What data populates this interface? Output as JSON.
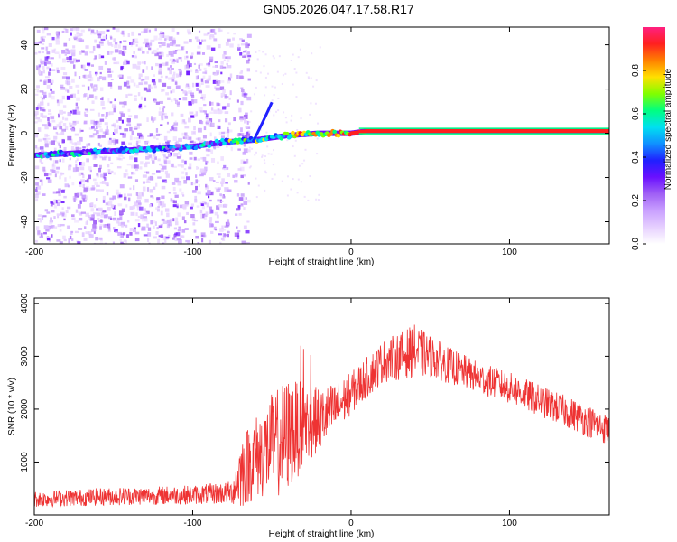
{
  "title": "GN05.2026.047.17.58.R17",
  "colors": {
    "line": "#ee3333",
    "colormap": [
      "#ffffff",
      "#e6d0ff",
      "#c9a0ff",
      "#a060f5",
      "#6a10ff",
      "#2020ff",
      "#1090ff",
      "#00e0f0",
      "#00ff80",
      "#80ff00",
      "#ffe000",
      "#ff8000",
      "#ff2020",
      "#ff2080"
    ]
  },
  "chart_data": [
    {
      "type": "heatmap",
      "xlabel": "Height of straight line (km)",
      "ylabel": "Frequency (Hz)",
      "xlim": [
        -200,
        163
      ],
      "ylim": [
        -50,
        48
      ],
      "xticks": [
        -200,
        -100,
        0,
        100
      ],
      "yticks": [
        -40,
        -20,
        0,
        20,
        40
      ],
      "colorbar": {
        "label": "Normalized spectral amplitude",
        "range": [
          0,
          1
        ],
        "ticks": [
          "0.0",
          "0.2",
          "0.4",
          "0.6",
          "0.8"
        ]
      },
      "ridge": {
        "description_points_x": [
          -200,
          -150,
          -100,
          -80,
          -60,
          -40,
          -20,
          0,
          10,
          163
        ],
        "description_points_freq": [
          -10,
          -8,
          -6,
          -4,
          -3,
          -1,
          0,
          0,
          1,
          1
        ]
      }
    },
    {
      "type": "line",
      "xlabel": "Height of straight line (km)",
      "ylabel": "SNR (10 * v/v)",
      "xlim": [
        -200,
        163
      ],
      "ylim": [
        0,
        4100
      ],
      "xticks": [
        -200,
        -100,
        0,
        100
      ],
      "yticks": [
        1000,
        2000,
        3000,
        4000
      ],
      "grid": false,
      "series": [
        {
          "x": [
            -200,
            -150,
            -100,
            -75,
            -70,
            -60,
            -50,
            -40,
            -30,
            -20,
            -10,
            0,
            10,
            20,
            30,
            40,
            50,
            60,
            80,
            100,
            120,
            140,
            163
          ],
          "mean": [
            300,
            350,
            380,
            420,
            800,
            1100,
            1300,
            1500,
            1700,
            1800,
            2000,
            2300,
            2600,
            2900,
            3000,
            3100,
            3000,
            2850,
            2600,
            2400,
            2150,
            1900,
            1600
          ],
          "spread": [
            150,
            170,
            180,
            220,
            700,
            800,
            1000,
            1100,
            800,
            600,
            500,
            400,
            400,
            400,
            450,
            500,
            400,
            350,
            300,
            300,
            300,
            300,
            300
          ]
        }
      ]
    }
  ]
}
